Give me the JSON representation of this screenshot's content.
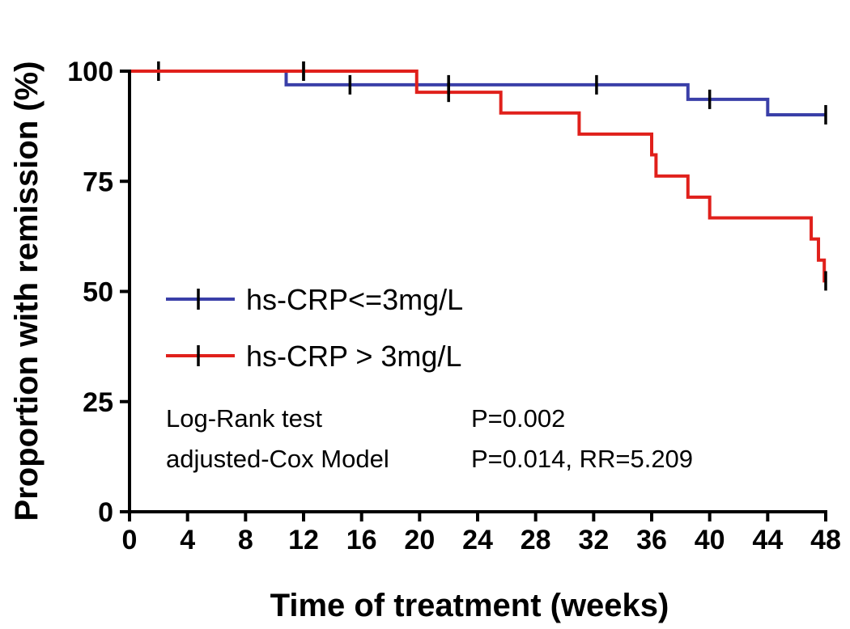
{
  "chart_data": {
    "type": "line",
    "title": "",
    "xlabel": "Time of treatment (weeks)",
    "ylabel": "Proportion with remission (%)",
    "xlim": [
      0,
      48
    ],
    "ylim": [
      0,
      100
    ],
    "x_ticks": [
      "0",
      "4",
      "8",
      "12",
      "16",
      "20",
      "24",
      "28",
      "32",
      "36",
      "40",
      "44",
      "48"
    ],
    "y_ticks": [
      "0",
      "25",
      "50",
      "75",
      "100"
    ],
    "grid": false,
    "legend_position": "left-middle",
    "series": [
      {
        "name": "hs-CRP<=3mg/L",
        "color": "#3a3fa8",
        "step": [
          [
            0,
            100
          ],
          [
            10.8,
            96.9
          ],
          [
            38.5,
            93.6
          ],
          [
            44.0,
            90.1
          ],
          [
            48,
            90.1
          ]
        ],
        "censored": [
          [
            2,
            100
          ],
          [
            12,
            100
          ],
          [
            15.2,
            96.9
          ],
          [
            22.0,
            96.9
          ],
          [
            32.2,
            96.9
          ],
          [
            40.0,
            93.6
          ],
          [
            48,
            90.1
          ]
        ]
      },
      {
        "name": "hs-CRP > 3mg/L",
        "color": "#e0201b",
        "step": [
          [
            0,
            100
          ],
          [
            19.8,
            95.2
          ],
          [
            25.6,
            90.5
          ],
          [
            31.0,
            85.7
          ],
          [
            36.0,
            81.0
          ],
          [
            36.3,
            76.2
          ],
          [
            38.5,
            71.4
          ],
          [
            40.0,
            66.7
          ],
          [
            47.0,
            61.9
          ],
          [
            47.5,
            57.1
          ],
          [
            47.9,
            52.4
          ],
          [
            48,
            52.4
          ]
        ],
        "censored": [
          [
            12,
            100
          ],
          [
            22.0,
            95.2
          ],
          [
            48,
            52.4
          ]
        ]
      }
    ],
    "annotations": [
      {
        "label": "Log-Rank test",
        "value": "P=0.002"
      },
      {
        "label": "adjusted-Cox Model",
        "value": "P=0.014, RR=5.209"
      }
    ]
  }
}
